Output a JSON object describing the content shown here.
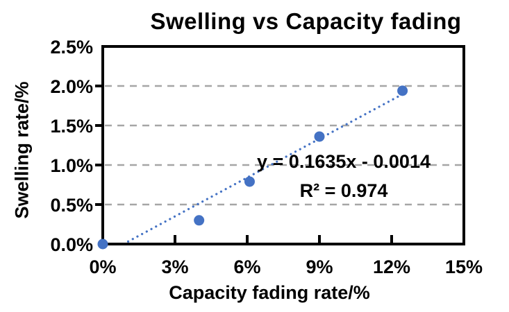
{
  "chart_data": {
    "type": "scatter",
    "title": "Swelling vs Capacity fading",
    "xlabel": "Capacity fading rate/%",
    "ylabel": "Swelling rate/%",
    "xlim": [
      0,
      15
    ],
    "ylim": [
      0,
      2.5
    ],
    "x_tick_values": [
      0,
      3,
      6,
      9,
      12,
      15
    ],
    "x_tick_labels": [
      "0%",
      "3%",
      "6%",
      "9%",
      "12%",
      "15%"
    ],
    "y_tick_values": [
      0,
      0.5,
      1.0,
      1.5,
      2.0,
      2.5
    ],
    "y_tick_labels": [
      "0.0%",
      "0.5%",
      "1.0%",
      "1.5%",
      "2.0%",
      "2.5%"
    ],
    "grid": "horizontal-dashed",
    "legend": "none",
    "points": [
      {
        "x": 0.0,
        "y": 0.0
      },
      {
        "x": 4.0,
        "y": 0.3
      },
      {
        "x": 6.1,
        "y": 0.79
      },
      {
        "x": 9.0,
        "y": 1.36
      },
      {
        "x": 12.45,
        "y": 1.94
      }
    ],
    "trendline": {
      "style": "dotted",
      "slope": 0.1635,
      "intercept": -0.0014,
      "x_start_pct": 0.86,
      "x_end_pct": 12.6,
      "equation_label": "y = 0.1635x - 0.0014",
      "r2_label": "R² = 0.974"
    },
    "colors": {
      "point": "#4472C4",
      "trendline": "#4472C4",
      "gridline": "#A6A6A6",
      "axis": "#000000",
      "text": "#000000"
    },
    "marker_size": 7.5
  }
}
